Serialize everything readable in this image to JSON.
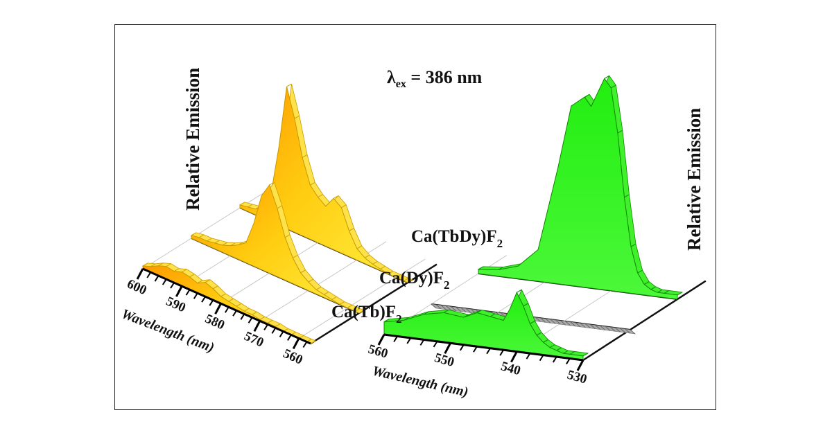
{
  "chart_data": {
    "type": "area",
    "annotation": {
      "symbol": "λ",
      "subscript": "ex",
      "text": " = 386 nm"
    },
    "charts": [
      {
        "ylabel": "Relative Emission",
        "xlabel": "Wavelength (nm)",
        "xticks": [
          "600",
          "590",
          "580",
          "570",
          "560"
        ],
        "xlim": [
          600,
          557
        ],
        "color": "#ffd21a",
        "series": [
          {
            "name": "Ca(Tb)F",
            "subscript": "2",
            "x": [
              600,
              598,
              596,
              594,
              592,
              590,
              588,
              586,
              584,
              582,
              580,
              578,
              576,
              574,
              572,
              570,
              568,
              566,
              564,
              562,
              560,
              558,
              557
            ],
            "y": [
              0.02,
              0.04,
              0.07,
              0.09,
              0.08,
              0.1,
              0.09,
              0.07,
              0.1,
              0.08,
              0.05,
              0.04,
              0.03,
              0.02,
              0.02,
              0.01,
              0.01,
              0.01,
              0.0,
              0.0,
              0.0,
              0.0,
              0.0
            ]
          },
          {
            "name": "Ca(Dy)F",
            "subscript": "2",
            "x": [
              600,
              598,
              596,
              594,
              592,
              590,
              588,
              586,
              584,
              582,
              580,
              578,
              576,
              574,
              572,
              570,
              568,
              566,
              564,
              562,
              560,
              558,
              557
            ],
            "y": [
              0.02,
              0.03,
              0.03,
              0.04,
              0.05,
              0.07,
              0.1,
              0.14,
              0.3,
              0.52,
              0.62,
              0.48,
              0.3,
              0.18,
              0.1,
              0.06,
              0.03,
              0.02,
              0.01,
              0.0,
              0.0,
              0.0,
              0.0
            ]
          },
          {
            "name": "Ca(TbDy)F",
            "subscript": "2",
            "x": [
              600,
              598,
              596,
              594,
              592,
              590,
              588,
              586,
              584,
              582,
              580,
              578,
              576,
              574,
              572,
              570,
              568,
              566,
              564,
              562,
              560,
              558,
              557
            ],
            "y": [
              0.02,
              0.03,
              0.04,
              0.08,
              0.2,
              0.55,
              1.0,
              0.8,
              0.55,
              0.38,
              0.32,
              0.28,
              0.36,
              0.32,
              0.18,
              0.08,
              0.04,
              0.02,
              0.01,
              0.0,
              0.0,
              0.0,
              0.0
            ]
          }
        ]
      },
      {
        "ylabel": "Relative Emission",
        "xlabel": "Wavelength (nm)",
        "xticks": [
          "560",
          "550",
          "540",
          "530"
        ],
        "xlim": [
          560,
          530
        ],
        "color": "#33ee22",
        "series": [
          {
            "name": "Ca(Tb)F2",
            "showLabel": false,
            "x": [
              560,
              557,
              554,
              551,
              548,
              546,
              544,
              542,
              541,
              540,
              539,
              538,
              537,
              536,
              535,
              534,
              533,
              532,
              530
            ],
            "y": [
              0.06,
              0.08,
              0.12,
              0.14,
              0.13,
              0.16,
              0.15,
              0.14,
              0.2,
              0.28,
              0.22,
              0.14,
              0.09,
              0.06,
              0.04,
              0.03,
              0.02,
              0.02,
              0.02
            ]
          },
          {
            "name": "Ca(Dy)F2",
            "showLabel": false,
            "color": "#aaaaaa",
            "x": [
              560,
              530
            ],
            "y": [
              0.0,
              0.0
            ]
          },
          {
            "name": "Ca(TbDy)F2",
            "showLabel": false,
            "x": [
              560,
              557,
              554,
              551,
              548,
              546,
              544,
              543,
              542,
              541,
              540,
              539,
              538,
              537,
              536,
              535,
              534,
              533,
              532,
              530
            ],
            "y": [
              0.02,
              0.03,
              0.06,
              0.15,
              0.55,
              0.85,
              0.9,
              0.86,
              0.93,
              1.0,
              0.96,
              0.75,
              0.45,
              0.22,
              0.1,
              0.05,
              0.03,
              0.02,
              0.02,
              0.02
            ]
          }
        ]
      }
    ]
  }
}
